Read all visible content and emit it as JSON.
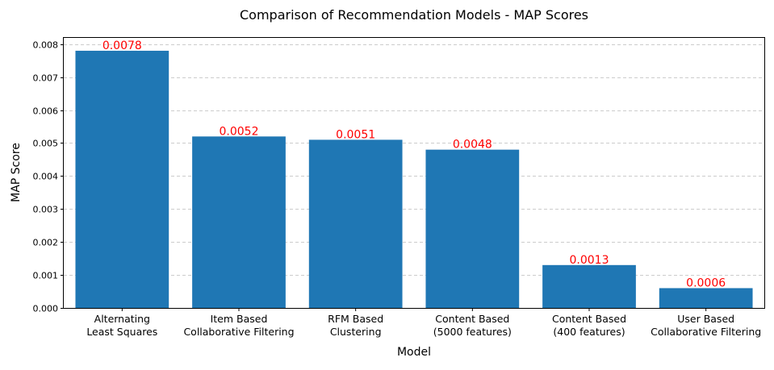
{
  "chart_data": {
    "type": "bar",
    "title": "Comparison of Recommendation Models - MAP Scores",
    "xlabel": "Model",
    "ylabel": "MAP Score",
    "categories": [
      [
        "Alternating",
        "Least Squares"
      ],
      [
        "Item Based",
        "Collaborative Filtering"
      ],
      [
        "RFM Based",
        "Clustering"
      ],
      [
        "Content Based",
        "(5000 features)"
      ],
      [
        "Content Based",
        "(400 features)"
      ],
      [
        "User Based",
        "Collaborative Filtering"
      ]
    ],
    "values": [
      0.0078,
      0.0052,
      0.0051,
      0.0048,
      0.0013,
      0.0006
    ],
    "data_labels": [
      "0.0078",
      "0.0052",
      "0.0051",
      "0.0048",
      "0.0013",
      "0.0006"
    ],
    "ylim": [
      0,
      0.00819
    ],
    "yticks": [
      0,
      0.001,
      0.002,
      0.003,
      0.004,
      0.005,
      0.006,
      0.007,
      0.008
    ],
    "ytick_labels": [
      "0.000",
      "0.001",
      "0.002",
      "0.003",
      "0.004",
      "0.005",
      "0.006",
      "0.007",
      "0.008"
    ],
    "grid": "y-dashed",
    "legend": "none",
    "colors": {
      "bar": "#1f77b4",
      "data_label": "#ff0000",
      "grid": "#cccccc",
      "axis": "#000000",
      "text": "#000000"
    }
  }
}
